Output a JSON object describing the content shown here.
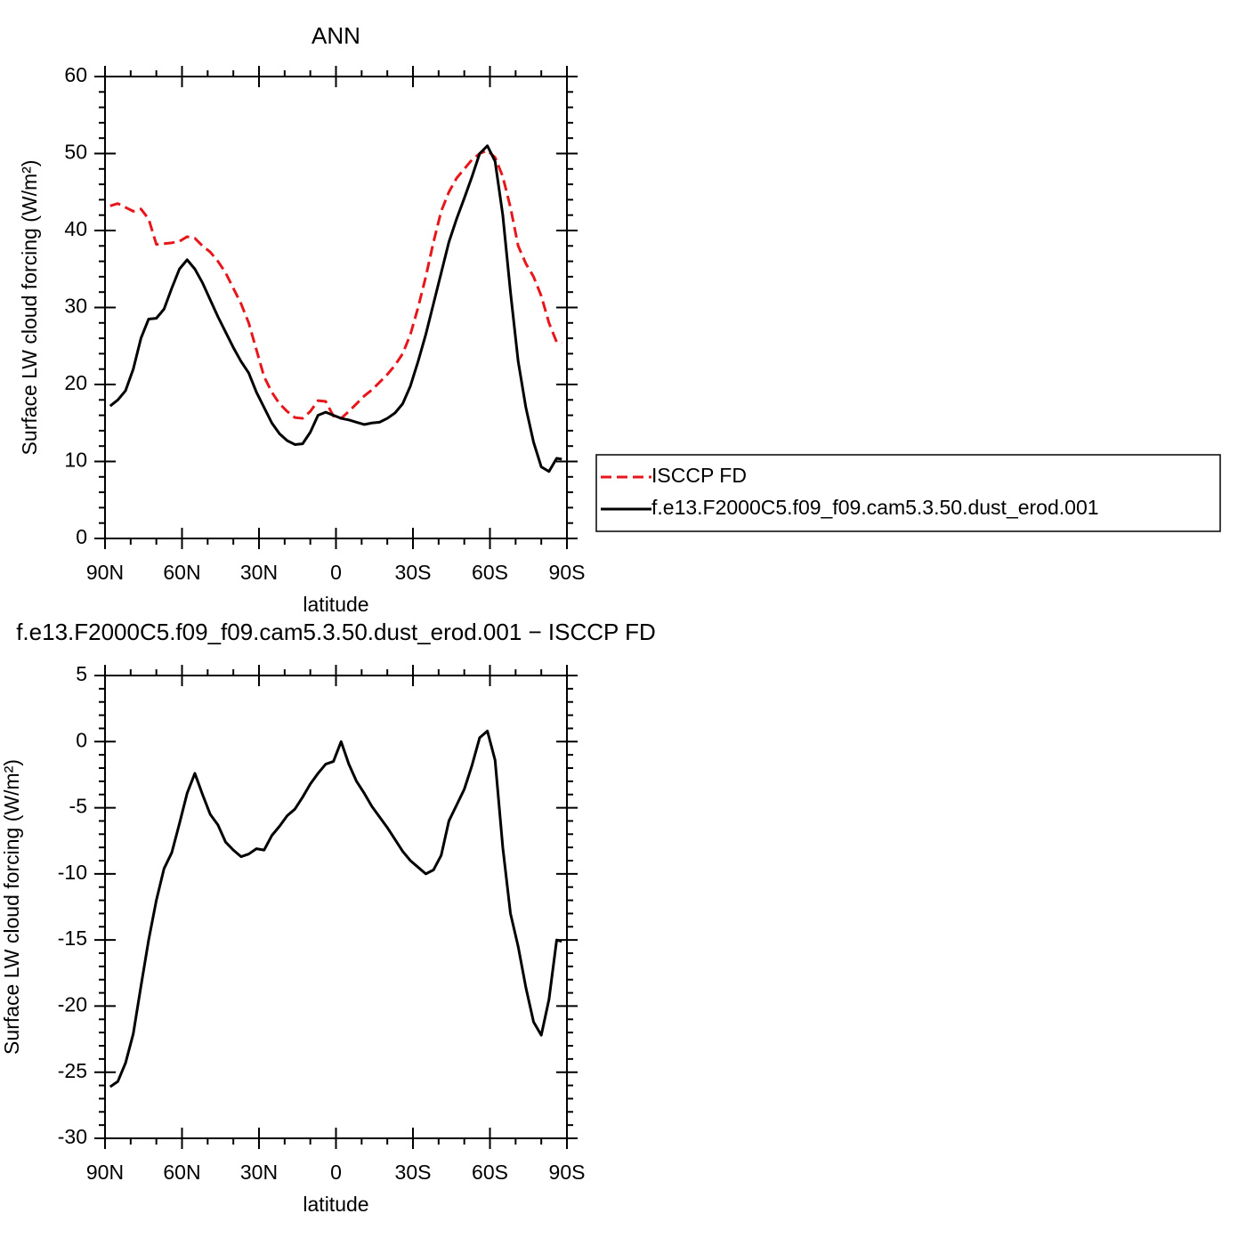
{
  "chart_data": [
    {
      "type": "line",
      "title": "ANN",
      "xlabel": "latitude",
      "ylabel": "Surface LW cloud forcing (W/m²)",
      "x": [
        88,
        85,
        82,
        79,
        76,
        73,
        70,
        67,
        64,
        61,
        58,
        55,
        52,
        49,
        46,
        43,
        40,
        37,
        34,
        31,
        28,
        25,
        22,
        19,
        16,
        13,
        10,
        7,
        4,
        1,
        -2,
        -5,
        -8,
        -11,
        -14,
        -17,
        -20,
        -23,
        -26,
        -29,
        -32,
        -35,
        -38,
        -41,
        -44,
        -47,
        -50,
        -53,
        -56,
        -59,
        -62,
        -65,
        -68,
        -71,
        -74,
        -77,
        -80,
        -83,
        -86,
        -88
      ],
      "series": [
        {
          "name": "ISCCP FD",
          "color": "#e8161b",
          "style": "dashed",
          "values": [
            43.2,
            43.5,
            43,
            42.5,
            42.8,
            41.5,
            38.2,
            38.3,
            38.4,
            38.6,
            39.2,
            39,
            38,
            37.2,
            36,
            34.5,
            32.5,
            30.5,
            28,
            24.5,
            21,
            19,
            17.5,
            16.5,
            15.7,
            15.6,
            16.5,
            17.9,
            17.8,
            15.9,
            15.6,
            16.5,
            17.5,
            18.5,
            19.3,
            20.3,
            21.3,
            22.5,
            24,
            26.5,
            30,
            34,
            38.5,
            42.5,
            45,
            46.8,
            48,
            49.2,
            50,
            50.4,
            49.5,
            47,
            43,
            38,
            35.7,
            34,
            31.5,
            28,
            25.5,
            25.4
          ]
        },
        {
          "name": "f.e13.F2000C5.f09_f09.cam5.3.50.dust_erod.001",
          "color": "#000000",
          "style": "solid",
          "values": [
            17.2,
            18,
            19.2,
            22,
            26,
            28.5,
            28.6,
            29.8,
            32.5,
            35,
            36.2,
            35,
            33.2,
            31,
            28.8,
            26.8,
            24.8,
            23,
            21.5,
            19,
            17,
            15,
            13.6,
            12.7,
            12.2,
            12.3,
            13.8,
            16,
            16.4,
            16,
            15.6,
            15.4,
            15.1,
            14.8,
            15,
            15.1,
            15.6,
            16.3,
            17.5,
            19.8,
            23,
            26.5,
            30.5,
            34.5,
            38.5,
            41.5,
            44.2,
            47,
            50,
            51,
            49,
            42,
            32,
            23,
            17,
            12.5,
            9.3,
            8.7,
            10.4,
            10.3
          ]
        }
      ],
      "xlim": [
        90,
        -90
      ],
      "ylim": [
        0,
        60
      ],
      "xticks": [
        {
          "value": 90,
          "label": "90N"
        },
        {
          "value": 60,
          "label": "60N"
        },
        {
          "value": 30,
          "label": "30N"
        },
        0,
        {
          "value": -30,
          "label": "30S"
        },
        {
          "value": -60,
          "label": "60S"
        },
        {
          "value": -90,
          "label": "90S"
        }
      ],
      "yticks": [
        0,
        10,
        20,
        30,
        40,
        50,
        60
      ],
      "legend": "right"
    },
    {
      "type": "line",
      "title": "f.e13.F2000C5.f09_f09.cam5.3.50.dust_erod.001 − ISCCP FD",
      "xlabel": "latitude",
      "ylabel": "Surface LW cloud forcing (W/m²)",
      "x": [
        88,
        85,
        82,
        79,
        76,
        73,
        70,
        67,
        64,
        61,
        58,
        55,
        52,
        49,
        46,
        43,
        40,
        37,
        34,
        31,
        28,
        25,
        22,
        19,
        16,
        13,
        10,
        7,
        4,
        1,
        -2,
        -5,
        -8,
        -11,
        -14,
        -17,
        -20,
        -23,
        -26,
        -29,
        -32,
        -35,
        -38,
        -41,
        -44,
        -47,
        -50,
        -53,
        -56,
        -59,
        -62,
        -65,
        -68,
        -71,
        -74,
        -77,
        -80,
        -83,
        -86,
        -88
      ],
      "series": [
        {
          "color": "#000000",
          "style": "solid",
          "values": [
            -26.1,
            -25.7,
            -24.3,
            -22.1,
            -18.5,
            -15,
            -12,
            -9.6,
            -8.4,
            -6.2,
            -3.9,
            -2.4,
            -4,
            -5.5,
            -6.3,
            -7.6,
            -8.2,
            -8.7,
            -8.5,
            -8.1,
            -8.2,
            -7.1,
            -6.4,
            -5.6,
            -5.1,
            -4.2,
            -3.2,
            -2.4,
            -1.7,
            -1.5,
            0,
            -1.7,
            -3,
            -3.9,
            -4.9,
            -5.7,
            -6.5,
            -7.4,
            -8.3,
            -9,
            -9.5,
            -10,
            -9.7,
            -8.6,
            -6,
            -4.8,
            -3.6,
            -1.8,
            0.3,
            0.8,
            -1.4,
            -8,
            -13,
            -15.5,
            -18.6,
            -21.2,
            -22.2,
            -19.5,
            -15,
            -15.1
          ]
        }
      ],
      "xlim": [
        90,
        -90
      ],
      "ylim": [
        -30,
        5
      ],
      "xticks": [
        {
          "value": 90,
          "label": "90N"
        },
        {
          "value": 60,
          "label": "60N"
        },
        {
          "value": 30,
          "label": "30N"
        },
        0,
        {
          "value": -30,
          "label": "30S"
        },
        {
          "value": -60,
          "label": "60S"
        },
        {
          "value": -90,
          "label": "90S"
        }
      ],
      "yticks": [
        -30,
        -25,
        -20,
        -15,
        -10,
        -5,
        0,
        5
      ]
    }
  ]
}
